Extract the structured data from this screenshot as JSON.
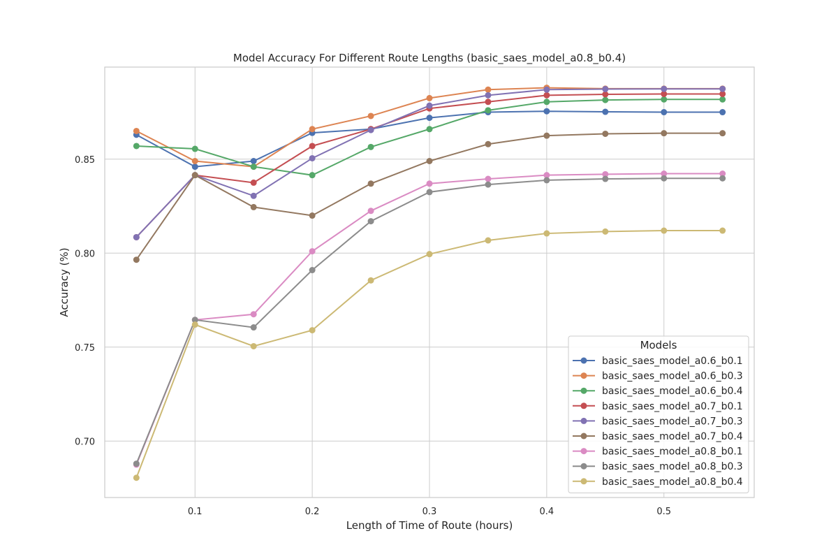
{
  "chart_data": {
    "type": "line",
    "title": "Model Accuracy For Different Route Lengths (basic_saes_model_a0.8_b0.4)",
    "xlabel": "Length of Time of Route (hours)",
    "ylabel": "Accuracy (%)",
    "xlim": [
      0.023,
      0.577
    ],
    "ylim": [
      0.67,
      0.899
    ],
    "xticks": [
      0.1,
      0.2,
      0.3,
      0.4,
      0.5
    ],
    "xtick_labels": [
      "0.1",
      "0.2",
      "0.3",
      "0.4",
      "0.5"
    ],
    "yticks": [
      0.7,
      0.75,
      0.8,
      0.85
    ],
    "ytick_labels": [
      "0.70",
      "0.75",
      "0.80",
      "0.85"
    ],
    "grid": true,
    "legend": {
      "title": "Models",
      "placement": "lower-right"
    },
    "x": [
      0.05,
      0.1,
      0.15,
      0.2,
      0.25,
      0.3,
      0.35,
      0.4,
      0.45,
      0.5,
      0.55
    ],
    "series": [
      {
        "name": "basic_saes_model_a0.6_b0.1",
        "color": "#4c72b0",
        "values": [
          0.863,
          0.846,
          0.849,
          0.864,
          0.866,
          0.872,
          0.875,
          0.8755,
          0.8752,
          0.875,
          0.875
        ]
      },
      {
        "name": "basic_saes_model_a0.6_b0.3",
        "color": "#dd8452",
        "values": [
          0.865,
          0.849,
          0.846,
          0.866,
          0.873,
          0.8825,
          0.887,
          0.888,
          0.8875,
          0.8875,
          0.8875
        ]
      },
      {
        "name": "basic_saes_model_a0.6_b0.4",
        "color": "#55a868",
        "values": [
          0.857,
          0.8555,
          0.846,
          0.8415,
          0.8565,
          0.866,
          0.876,
          0.8805,
          0.8815,
          0.8818,
          0.8818
        ]
      },
      {
        "name": "basic_saes_model_a0.7_b0.1",
        "color": "#c44e52",
        "values": [
          0.8085,
          0.8415,
          0.8375,
          0.857,
          0.866,
          0.877,
          0.8805,
          0.884,
          0.8845,
          0.8847,
          0.8847
        ]
      },
      {
        "name": "basic_saes_model_a0.7_b0.3",
        "color": "#8172b3",
        "values": [
          0.8085,
          0.8415,
          0.8305,
          0.8505,
          0.8655,
          0.8785,
          0.884,
          0.887,
          0.8873,
          0.8874,
          0.8874
        ]
      },
      {
        "name": "basic_saes_model_a0.7_b0.4",
        "color": "#937860",
        "values": [
          0.7965,
          0.8415,
          0.8245,
          0.82,
          0.837,
          0.849,
          0.858,
          0.8625,
          0.8635,
          0.8638,
          0.8638
        ]
      },
      {
        "name": "basic_saes_model_a0.8_b0.1",
        "color": "#da8bc3",
        "values": [
          0.6875,
          0.7645,
          0.7675,
          0.801,
          0.8225,
          0.837,
          0.8395,
          0.8415,
          0.842,
          0.8423,
          0.8423
        ]
      },
      {
        "name": "basic_saes_model_a0.8_b0.3",
        "color": "#8c8c8c",
        "values": [
          0.688,
          0.7645,
          0.7605,
          0.791,
          0.817,
          0.8325,
          0.8365,
          0.8388,
          0.8395,
          0.8398,
          0.8398
        ]
      },
      {
        "name": "basic_saes_model_a0.8_b0.4",
        "color": "#ccb974",
        "values": [
          0.6805,
          0.762,
          0.7505,
          0.759,
          0.7855,
          0.7995,
          0.8068,
          0.8105,
          0.8115,
          0.812,
          0.812
        ]
      }
    ]
  }
}
